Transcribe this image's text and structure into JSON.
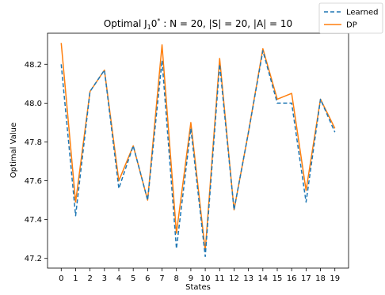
{
  "chart_data": {
    "type": "line",
    "title": "Optimal J",
    "title_sub": "1",
    "title_mid": "0",
    "title_sup": "*",
    "title_rest": " : N = 20, |S| = 20, |A| = 10",
    "xlabel": "States",
    "ylabel": "Optimal Value",
    "x": [
      0,
      1,
      2,
      3,
      4,
      5,
      6,
      7,
      8,
      9,
      10,
      11,
      12,
      13,
      14,
      15,
      16,
      17,
      18,
      19
    ],
    "xlim": [
      -0.95,
      19.95
    ],
    "ylim": [
      47.15,
      48.36
    ],
    "yticks": [
      47.2,
      47.4,
      47.6,
      47.8,
      48.0,
      48.2
    ],
    "ytick_labels": [
      "47.2",
      "47.4",
      "47.6",
      "47.8",
      "48.0",
      "48.2"
    ],
    "xtick_labels": [
      "0",
      "1",
      "2",
      "3",
      "4",
      "5",
      "6",
      "7",
      "8",
      "9",
      "10",
      "11",
      "12",
      "13",
      "14",
      "15",
      "16",
      "17",
      "18",
      "19"
    ],
    "legend_position": "top-right",
    "series": [
      {
        "name": "Learned",
        "color": "#1f77b4",
        "style": "dashed",
        "values": [
          48.2,
          47.42,
          48.06,
          48.17,
          47.56,
          47.78,
          47.5,
          48.22,
          47.25,
          47.87,
          47.21,
          48.2,
          47.45,
          47.85,
          48.27,
          48.0,
          48.0,
          47.49,
          48.02,
          47.85
        ]
      },
      {
        "name": "DP",
        "color": "#ff7f0e",
        "style": "solid",
        "values": [
          48.31,
          47.49,
          48.06,
          48.17,
          47.6,
          47.78,
          47.5,
          48.3,
          47.33,
          47.9,
          47.24,
          48.23,
          47.45,
          47.85,
          48.28,
          48.02,
          48.05,
          47.55,
          48.02,
          47.87
        ]
      }
    ]
  }
}
